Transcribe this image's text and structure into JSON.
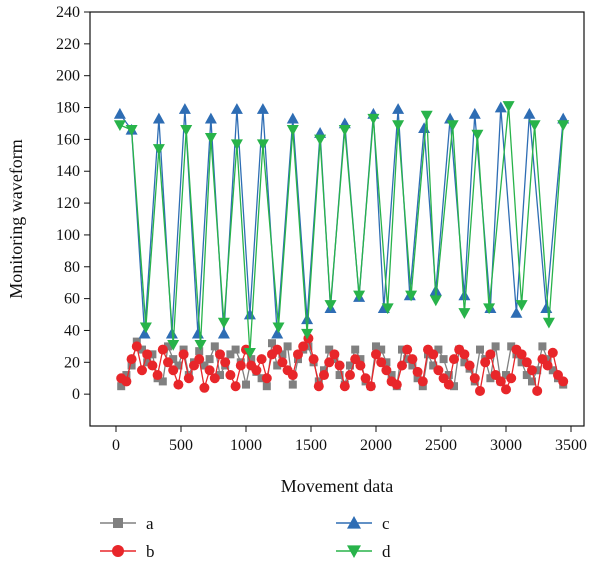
{
  "chart_data": {
    "type": "line",
    "title": "",
    "xlabel": "Movement data",
    "ylabel": "Monitoring waveform",
    "xlim": [
      -200,
      3600
    ],
    "ylim": [
      -20,
      240
    ],
    "xticks": [
      0,
      500,
      1000,
      1500,
      2000,
      2500,
      3000,
      3500
    ],
    "yticks": [
      0,
      20,
      40,
      60,
      80,
      100,
      120,
      140,
      160,
      180,
      200,
      220,
      240
    ],
    "grid": false,
    "legend_position": "bottom",
    "series": [
      {
        "name": "a",
        "color": "#808080",
        "marker": "square",
        "x": [
          40,
          80,
          120,
          160,
          200,
          240,
          280,
          320,
          360,
          400,
          440,
          480,
          520,
          560,
          600,
          640,
          680,
          720,
          760,
          800,
          840,
          880,
          920,
          960,
          1000,
          1040,
          1080,
          1120,
          1160,
          1200,
          1240,
          1280,
          1320,
          1360,
          1400,
          1440,
          1480,
          1520,
          1560,
          1600,
          1640,
          1680,
          1720,
          1760,
          1800,
          1840,
          1880,
          1920,
          1960,
          2000,
          2040,
          2080,
          2120,
          2160,
          2200,
          2240,
          2280,
          2320,
          2360,
          2400,
          2440,
          2480,
          2520,
          2560,
          2600,
          2640,
          2680,
          2720,
          2760,
          2800,
          2840,
          2880,
          2920,
          2960,
          3000,
          3040,
          3080,
          3120,
          3160,
          3200,
          3240,
          3280,
          3320,
          3360,
          3400,
          3440
        ],
        "y": [
          5,
          12,
          18,
          33,
          28,
          20,
          25,
          10,
          8,
          30,
          22,
          18,
          28,
          12,
          20,
          27,
          18,
          22,
          30,
          12,
          18,
          25,
          28,
          20,
          6,
          22,
          14,
          10,
          5,
          32,
          18,
          25,
          30,
          6,
          22,
          28,
          30,
          20,
          8,
          15,
          28,
          22,
          12,
          6,
          18,
          28,
          22,
          8,
          5,
          30,
          28,
          20,
          12,
          5,
          28,
          22,
          18,
          10,
          5,
          25,
          18,
          28,
          22,
          12,
          5,
          28,
          20,
          16,
          8,
          28,
          22,
          10,
          30,
          8,
          12,
          30,
          25,
          20,
          12,
          8,
          15,
          30,
          22,
          15,
          10,
          6
        ]
      },
      {
        "name": "b",
        "color": "#e8262a",
        "marker": "circle",
        "x": [
          40,
          80,
          120,
          160,
          200,
          240,
          280,
          320,
          360,
          400,
          440,
          480,
          520,
          560,
          600,
          640,
          680,
          720,
          760,
          800,
          840,
          880,
          920,
          960,
          1000,
          1040,
          1080,
          1120,
          1160,
          1200,
          1240,
          1280,
          1320,
          1360,
          1400,
          1440,
          1480,
          1520,
          1560,
          1600,
          1640,
          1680,
          1720,
          1760,
          1800,
          1840,
          1880,
          1920,
          1960,
          2000,
          2040,
          2080,
          2120,
          2160,
          2200,
          2240,
          2280,
          2320,
          2360,
          2400,
          2440,
          2480,
          2520,
          2560,
          2600,
          2640,
          2680,
          2720,
          2760,
          2800,
          2840,
          2880,
          2920,
          2960,
          3000,
          3040,
          3080,
          3120,
          3160,
          3200,
          3240,
          3280,
          3320,
          3360,
          3400,
          3440
        ],
        "y": [
          10,
          8,
          22,
          30,
          15,
          25,
          18,
          12,
          28,
          20,
          15,
          6,
          25,
          10,
          18,
          22,
          4,
          15,
          10,
          25,
          20,
          12,
          5,
          18,
          28,
          18,
          15,
          22,
          10,
          25,
          28,
          20,
          15,
          12,
          25,
          30,
          35,
          22,
          5,
          12,
          20,
          25,
          18,
          5,
          12,
          22,
          18,
          10,
          5,
          25,
          20,
          15,
          8,
          6,
          18,
          28,
          22,
          14,
          8,
          28,
          25,
          15,
          10,
          6,
          22,
          28,
          25,
          18,
          10,
          2,
          20,
          25,
          12,
          8,
          3,
          10,
          28,
          25,
          20,
          15,
          2,
          22,
          18,
          26,
          12,
          8
        ]
      },
      {
        "name": "c",
        "color": "#2e6db4",
        "marker": "triangle-up",
        "x": [
          30,
          120,
          220,
          330,
          430,
          530,
          630,
          730,
          830,
          930,
          1030,
          1130,
          1240,
          1360,
          1470,
          1570,
          1650,
          1760,
          1870,
          1980,
          2060,
          2170,
          2260,
          2370,
          2460,
          2570,
          2680,
          2760,
          2880,
          2960,
          3080,
          3180,
          3310,
          3440
        ],
        "y": [
          176,
          166,
          38,
          173,
          38,
          179,
          38,
          173,
          38,
          179,
          50,
          179,
          38,
          173,
          47,
          164,
          54,
          170,
          61,
          176,
          54,
          179,
          62,
          167,
          65,
          173,
          62,
          176,
          54,
          180,
          51,
          176,
          54,
          173
        ]
      },
      {
        "name": "d",
        "color": "#28b34a",
        "marker": "triangle-down",
        "x": [
          30,
          120,
          230,
          330,
          440,
          540,
          650,
          730,
          830,
          930,
          1030,
          1130,
          1250,
          1360,
          1470,
          1570,
          1650,
          1760,
          1870,
          1980,
          2090,
          2170,
          2270,
          2390,
          2460,
          2590,
          2680,
          2780,
          2870,
          3020,
          3120,
          3220,
          3330,
          3440
        ],
        "y": [
          169,
          166,
          42,
          154,
          31,
          166,
          31,
          161,
          45,
          157,
          26,
          157,
          42,
          166,
          38,
          160,
          56,
          166,
          62,
          173,
          54,
          169,
          62,
          175,
          59,
          169,
          51,
          163,
          54,
          181,
          56,
          169,
          45,
          169
        ]
      }
    ]
  }
}
